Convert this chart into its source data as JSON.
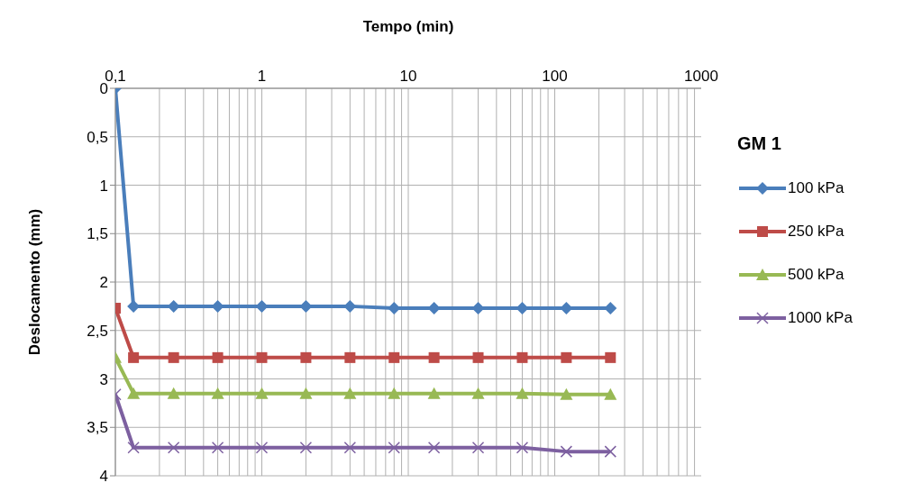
{
  "chart_data": {
    "type": "line",
    "xlabel": "Tempo (min)",
    "ylabel": "Deslocamento (mm)",
    "legend_title": "GM 1",
    "log": "x",
    "x": [
      0.1,
      0.133,
      0.25,
      0.5,
      1,
      2,
      4,
      8,
      15,
      30,
      60,
      120,
      240
    ],
    "xlim": [
      0.1,
      1000
    ],
    "xticks": [
      {
        "value": 0.1,
        "label": "0,1"
      },
      1,
      10,
      100,
      1000
    ],
    "ylim": [
      4,
      0
    ],
    "yticks": [
      0,
      {
        "value": 0.5,
        "label": "0,5"
      },
      1,
      {
        "value": 1.5,
        "label": "1,5"
      },
      2,
      {
        "value": 2.5,
        "label": "2,5"
      },
      3,
      {
        "value": 3.5,
        "label": "3,5"
      },
      4
    ],
    "grid": true,
    "legend": "right",
    "line_style": "solid",
    "series": [
      {
        "name": "100 kPa",
        "color": "#4a7ebb",
        "marker": "diamond",
        "values": [
          0,
          2.25,
          2.25,
          2.25,
          2.25,
          2.25,
          2.25,
          2.27,
          2.27,
          2.27,
          2.27,
          2.27,
          2.27
        ]
      },
      {
        "name": "250 kPa",
        "color": "#be4b48",
        "marker": "square",
        "values": [
          2.27,
          2.78,
          2.78,
          2.78,
          2.78,
          2.78,
          2.78,
          2.78,
          2.78,
          2.78,
          2.78,
          2.78,
          2.78
        ]
      },
      {
        "name": "500 kPa",
        "color": "#98b954",
        "marker": "triangle",
        "values": [
          2.78,
          3.15,
          3.15,
          3.15,
          3.15,
          3.15,
          3.15,
          3.15,
          3.15,
          3.15,
          3.15,
          3.16,
          3.16
        ]
      },
      {
        "name": "1000 kPa",
        "color": "#7d60a0",
        "marker": "cross",
        "values": [
          3.16,
          3.71,
          3.71,
          3.71,
          3.71,
          3.71,
          3.71,
          3.71,
          3.71,
          3.71,
          3.71,
          3.75,
          3.75
        ]
      }
    ]
  }
}
